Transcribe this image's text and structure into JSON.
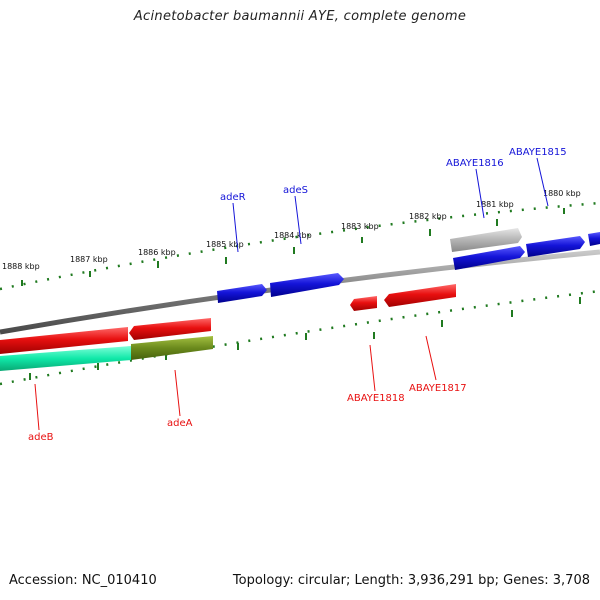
{
  "title": "Acinetobacter baumannii AYE, complete genome",
  "footer": {
    "accession": "Accession: NC_010410",
    "topology": "Topology: circular; Length: 3,936,291 bp; Genes: 3,708"
  },
  "ticks": [
    "1888 kbp",
    "1887 kbp",
    "1886 kbp",
    "1885 kbp",
    "1884 kbp",
    "1883 kbp",
    "1882 kbp",
    "1881 kbp",
    "1880 kbp"
  ],
  "labels": {
    "adeB": "adeB",
    "adeA": "adeA",
    "adeR": "adeR",
    "adeS": "adeS",
    "ABAYE1815": "ABAYE1815",
    "ABAYE1816": "ABAYE1816",
    "ABAYE1817": "ABAYE1817",
    "ABAYE1818": "ABAYE1818"
  },
  "colors": {
    "red": "#e81010",
    "blue": "#1414d8",
    "grey": "#b4b4b4",
    "cyan": "#10e8a8",
    "olive": "#6b8a1c",
    "backbone": "#808080",
    "tick": "#207a20"
  }
}
